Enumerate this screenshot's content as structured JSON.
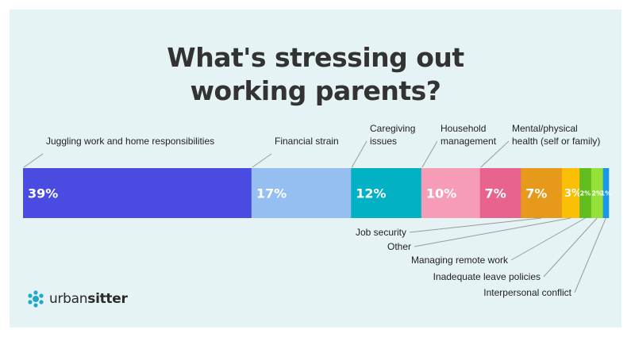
{
  "title": {
    "line1": "What's stressing out",
    "line2": "working parents?"
  },
  "brand": {
    "name_light": "urban",
    "name_bold": "sitter"
  },
  "chart_data": {
    "type": "bar",
    "orientation": "horizontal-stacked",
    "unit": "%",
    "categories": [
      "Juggling work and home responsibilities",
      "Financial strain",
      "Caregiving issues",
      "Household management",
      "Mental/physical health (self or family)",
      "Job security",
      "Other",
      "Managing remote work",
      "Inadequate leave policies",
      "Interpersonal conflict"
    ],
    "values": [
      39,
      17,
      12,
      10,
      7,
      7,
      3,
      2,
      2,
      1
    ],
    "value_labels": [
      "39%",
      "17%",
      "12%",
      "10%",
      "7%",
      "7%",
      "3%",
      "2%",
      "2%",
      "1%"
    ],
    "label_lines": [
      [
        "Juggling work and home responsibilities"
      ],
      [
        "Financial strain"
      ],
      [
        "Caregiving",
        "issues"
      ],
      [
        "Household",
        "management"
      ],
      [
        "Mental/physical",
        "health (self or family)"
      ],
      [
        "Job security"
      ],
      [
        "Other"
      ],
      [
        "Managing remote work"
      ],
      [
        "Inadequate leave policies"
      ],
      [
        "Interpersonal conflict"
      ]
    ],
    "label_position": [
      "top",
      "top",
      "top",
      "top",
      "top",
      "bottom",
      "bottom",
      "bottom",
      "bottom",
      "bottom"
    ],
    "colors": [
      "#4a4be0",
      "#94bff0",
      "#03b1c4",
      "#f79cb6",
      "#e8638e",
      "#e6991a",
      "#fbbf06",
      "#62bd1e",
      "#96e03a",
      "#1b97e8"
    ]
  }
}
